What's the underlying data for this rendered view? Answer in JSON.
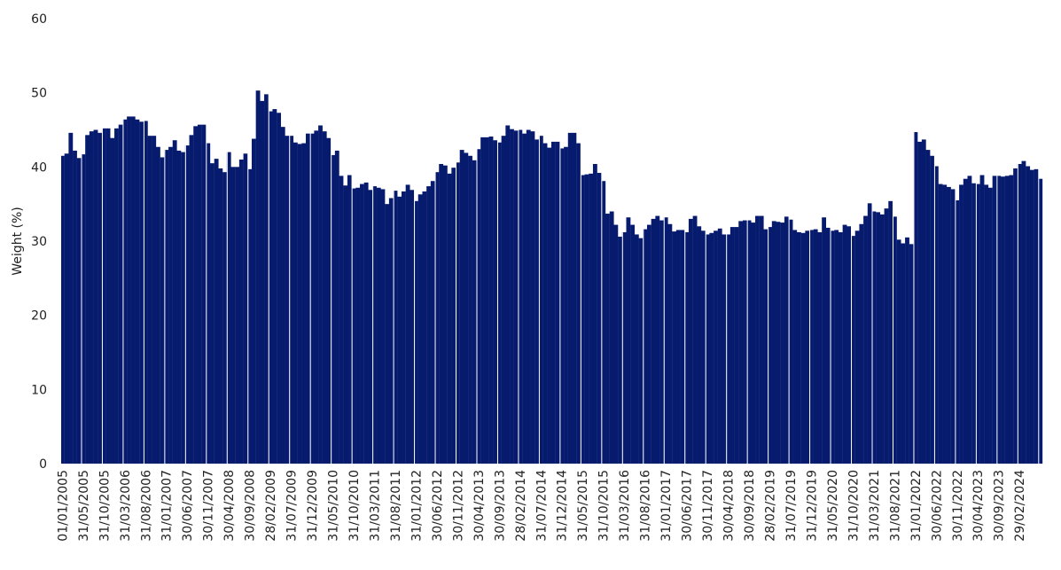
{
  "chart_data": {
    "type": "bar",
    "title": "",
    "xlabel": "",
    "ylabel": "Weight (%)",
    "ylim": [
      0,
      60
    ],
    "yticks": [
      "0",
      "10",
      "20",
      "30",
      "40",
      "50",
      "60"
    ],
    "grid": false,
    "legend": "none",
    "bar_color": "#061A6E",
    "xtick_labels": [
      "01/01/2005",
      "31/05/2005",
      "31/10/2005",
      "31/03/2006",
      "31/08/2006",
      "31/01/2007",
      "30/06/2007",
      "30/11/2007",
      "30/04/2008",
      "30/09/2008",
      "28/02/2009",
      "31/07/2009",
      "31/12/2009",
      "31/05/2010",
      "31/10/2010",
      "31/03/2011",
      "31/08/2011",
      "31/01/2012",
      "30/06/2012",
      "30/11/2012",
      "30/04/2013",
      "30/09/2013",
      "28/02/2014",
      "31/07/2014",
      "31/12/2014",
      "31/05/2015",
      "31/10/2015",
      "31/03/2016",
      "31/08/2016",
      "31/01/2017",
      "30/06/2017",
      "30/11/2017",
      "30/04/2018",
      "30/09/2018",
      "28/02/2019",
      "31/07/2019",
      "31/12/2019",
      "31/05/2020",
      "31/10/2020",
      "31/03/2021",
      "31/08/2021",
      "31/01/2022",
      "30/06/2022",
      "30/11/2022",
      "30/04/2023",
      "30/09/2023",
      "29/02/2024"
    ],
    "series": [
      {
        "values": [
          41.5,
          41.8,
          44.6,
          42.2,
          41.2,
          41.7,
          44.3,
          44.8,
          45.0,
          44.6,
          45.2,
          45.2,
          43.9,
          45.2,
          45.7,
          46.4,
          46.8,
          46.8,
          46.4,
          46.1,
          46.2,
          44.2,
          44.2,
          42.7,
          41.3,
          42.3,
          42.7,
          43.6,
          42.2,
          42.0,
          42.9,
          44.3,
          45.5,
          45.7,
          45.7,
          43.2,
          40.5,
          41.1,
          39.8,
          39.3,
          42.0,
          40.0,
          40.0,
          41.0,
          41.8,
          39.7,
          43.8,
          50.3,
          48.9,
          49.8,
          47.5,
          47.8,
          47.3,
          45.4,
          44.2,
          44.2,
          43.3,
          43.1,
          43.2,
          44.5,
          44.5,
          44.9,
          45.6,
          44.8,
          43.9,
          41.6,
          42.2,
          38.8,
          37.5,
          38.9,
          37.1,
          37.2,
          37.7,
          37.9,
          36.9,
          37.4,
          37.2,
          37.0,
          35.0,
          35.8,
          36.8,
          36.0,
          36.7,
          37.6,
          36.9,
          35.4,
          36.3,
          36.7,
          37.4,
          38.1,
          39.3,
          40.4,
          40.2,
          39.1,
          39.9,
          40.6,
          42.3,
          41.9,
          41.5,
          40.9,
          42.4,
          44.0,
          44.0,
          44.1,
          43.6,
          43.3,
          44.2,
          45.6,
          45.1,
          44.9,
          45.0,
          44.5,
          45.0,
          44.8,
          43.7,
          44.2,
          43.2,
          42.6,
          43.4,
          43.4,
          42.5,
          42.7,
          44.6,
          44.6,
          43.2,
          38.9,
          39.0,
          39.1,
          40.4,
          39.2,
          38.1,
          33.7,
          34.0,
          32.2,
          30.6,
          31.2,
          33.2,
          32.2,
          30.9,
          30.4,
          31.6,
          32.2,
          33.0,
          33.4,
          32.8,
          33.2,
          32.3,
          31.3,
          31.5,
          31.5,
          31.2,
          33.0,
          33.4,
          32.0,
          31.4,
          30.9,
          31.1,
          31.4,
          31.7,
          30.9,
          30.9,
          31.9,
          31.9,
          32.7,
          32.8,
          32.8,
          32.5,
          33.4,
          33.4,
          31.6,
          31.9,
          32.7,
          32.6,
          32.5,
          33.3,
          32.9,
          31.5,
          31.2,
          31.1,
          31.4,
          31.5,
          31.6,
          31.2,
          33.2,
          31.8,
          31.4,
          31.5,
          31.2,
          32.2,
          32.0,
          30.7,
          31.4,
          32.3,
          33.4,
          35.1,
          34.0,
          33.9,
          33.6,
          34.4,
          35.4,
          33.3,
          30.2,
          29.7,
          30.5,
          29.6,
          44.7,
          43.4,
          43.7,
          42.3,
          41.5,
          40.1,
          37.7,
          37.6,
          37.3,
          37.0,
          35.5,
          37.6,
          38.4,
          38.8,
          37.8,
          37.7,
          38.9,
          37.6,
          37.2,
          38.8,
          38.8,
          38.7,
          38.8,
          38.9,
          39.8,
          40.4,
          40.8,
          40.1,
          39.6,
          39.7,
          38.4
        ]
      }
    ]
  }
}
